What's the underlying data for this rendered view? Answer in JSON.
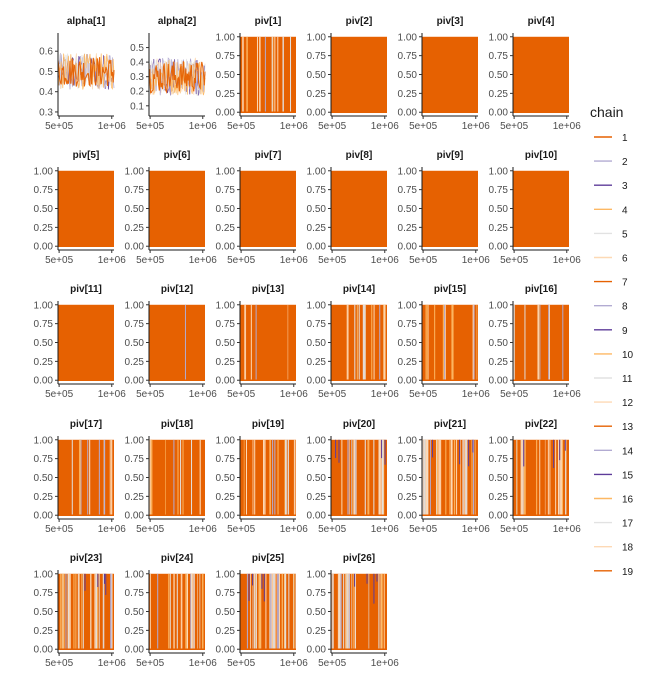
{
  "chart_data": {
    "type": "line",
    "subtype": "mcmc-traceplot-facets",
    "x_tick_labels": [
      "5e+05",
      "1e+06"
    ],
    "x_range": [
      500000,
      1000000
    ],
    "legend": {
      "title": "chain",
      "placement": "right",
      "entries": [
        "1",
        "2",
        "3",
        "4",
        "5",
        "6",
        "7",
        "8",
        "9",
        "10",
        "11",
        "12",
        "13",
        "14",
        "15",
        "16",
        "17",
        "18",
        "19"
      ],
      "colors": [
        "#e66101",
        "#b2abd2",
        "#5e3c99",
        "#fdb863",
        "#e2e2e2",
        "#fdd9b5",
        "#e66101",
        "#b2abd2",
        "#5e3c99",
        "#fdb863",
        "#e2e2e2",
        "#fdd9b5",
        "#e66101",
        "#b2abd2",
        "#5e3c99",
        "#fdb863",
        "#e2e2e2",
        "#fdd9b5",
        "#e66101"
      ]
    },
    "panels": [
      {
        "title": "alpha[1]",
        "ylim": [
          0.28,
          0.69
        ],
        "yticks": [
          0.3,
          0.4,
          0.5,
          0.6
        ],
        "ytick_labels": [
          "0.3",
          "0.4",
          "0.5",
          "0.6"
        ],
        "mean": 0.5,
        "spread": 0.09
      },
      {
        "title": "alpha[2]",
        "ylim": [
          0.03,
          0.6
        ],
        "yticks": [
          0.1,
          0.2,
          0.3,
          0.4,
          0.5
        ],
        "ytick_labels": [
          "0.1",
          "0.2",
          "0.3",
          "0.4",
          "0.5"
        ],
        "mean": 0.3,
        "spread": 0.13
      },
      {
        "title": "piv[1]",
        "switches": 6,
        "spikes": 6
      },
      {
        "title": "piv[2]",
        "switches": 0,
        "spikes": 0
      },
      {
        "title": "piv[3]",
        "switches": 0,
        "spikes": 0
      },
      {
        "title": "piv[4]",
        "switches": 0,
        "spikes": 0
      },
      {
        "title": "piv[5]",
        "switches": 0,
        "spikes": 0
      },
      {
        "title": "piv[6]",
        "switches": 0,
        "spikes": 0
      },
      {
        "title": "piv[7]",
        "switches": 0,
        "spikes": 0
      },
      {
        "title": "piv[8]",
        "switches": 0,
        "spikes": 0
      },
      {
        "title": "piv[9]",
        "switches": 0,
        "spikes": 0
      },
      {
        "title": "piv[10]",
        "switches": 0,
        "spikes": 0
      },
      {
        "title": "piv[11]",
        "switches": 0,
        "spikes": 0
      },
      {
        "title": "piv[12]",
        "switches": 0,
        "spikes": 1
      },
      {
        "title": "piv[13]",
        "switches": 2,
        "spikes": 2
      },
      {
        "title": "piv[14]",
        "switches": 6,
        "spikes": 8
      },
      {
        "title": "piv[15]",
        "switches": 5,
        "spikes": 7
      },
      {
        "title": "piv[16]",
        "switches": 4,
        "spikes": 5
      },
      {
        "title": "piv[17]",
        "switches": 4,
        "spikes": 6
      },
      {
        "title": "piv[18]",
        "switches": 4,
        "spikes": 5
      },
      {
        "title": "piv[19]",
        "switches": 9,
        "spikes": 10
      },
      {
        "title": "piv[20]",
        "switches": 12,
        "spikes": 12
      },
      {
        "title": "piv[21]",
        "switches": 18,
        "spikes": 14
      },
      {
        "title": "piv[22]",
        "switches": 14,
        "spikes": 12
      },
      {
        "title": "piv[23]",
        "switches": 16,
        "spikes": 12
      },
      {
        "title": "piv[24]",
        "switches": 10,
        "spikes": 9
      },
      {
        "title": "piv[25]",
        "switches": 16,
        "spikes": 14
      },
      {
        "title": "piv[26]",
        "switches": 14,
        "spikes": 12
      }
    ],
    "piv_ylim": [
      -0.05,
      1.05
    ],
    "piv_yticks": [
      0,
      0.25,
      0.5,
      0.75,
      1
    ],
    "piv_ytick_labels": [
      "0.00",
      "0.25",
      "0.50",
      "0.75",
      "1.00"
    ],
    "grid": false
  }
}
